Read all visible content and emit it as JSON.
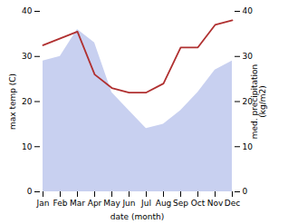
{
  "chart_data": {
    "type": "line",
    "categories": [
      "Jan",
      "Feb",
      "Mar",
      "Apr",
      "May",
      "Jun",
      "Jul",
      "Aug",
      "Sep",
      "Oct",
      "Nov",
      "Dec"
    ],
    "series": [
      {
        "type": "area",
        "color": "#c8d0f0",
        "values": [
          29,
          30,
          36,
          33,
          22,
          18,
          14,
          15,
          18,
          22,
          27,
          29
        ]
      },
      {
        "type": "line",
        "color": "#b03030",
        "axis": "y2",
        "values": [
          32.5,
          34,
          35.5,
          26,
          23,
          22,
          22,
          24,
          32,
          32,
          37,
          38
        ]
      }
    ],
    "xlabel": "date (month)",
    "ylabel": "max temp (C)",
    "y2label": "med. precipitation\n(kg/m2)",
    "ylim": [
      0,
      40
    ],
    "yticks": [
      0,
      10,
      20,
      30,
      40
    ],
    "y2lim": [
      0,
      40
    ],
    "y2ticks": [
      0,
      10,
      20,
      30,
      40
    ],
    "grid": false
  }
}
